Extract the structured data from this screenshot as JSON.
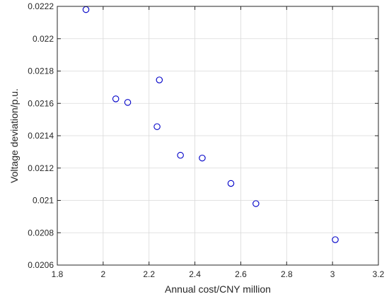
{
  "chart_data": {
    "type": "scatter",
    "title": "",
    "xlabel": "Annual cost/CNY million",
    "ylabel": "Voltage deviation/p.u.",
    "xlim": [
      1.8,
      3.2
    ],
    "ylim": [
      0.0206,
      0.0222
    ],
    "xticks": [
      1.8,
      2,
      2.2,
      2.4,
      2.6,
      2.8,
      3,
      3.2
    ],
    "xtick_labels": [
      "1.8",
      "2",
      "2.2",
      "2.4",
      "2.6",
      "2.8",
      "3",
      "3.2"
    ],
    "yticks": [
      0.0206,
      0.0208,
      0.021,
      0.0212,
      0.0214,
      0.0216,
      0.0218,
      0.022,
      0.0222
    ],
    "ytick_labels": [
      "0.0206",
      "0.0208",
      "0.021",
      "0.0212",
      "0.0214",
      "0.0216",
      "0.0218",
      "0.022",
      "0.0222"
    ],
    "grid": true,
    "marker": "circle",
    "marker_color": "#0000c8",
    "series": [
      {
        "points": [
          {
            "x": 1.925,
            "y": 0.02218
          },
          {
            "x": 2.055,
            "y": 0.021628
          },
          {
            "x": 2.107,
            "y": 0.021606
          },
          {
            "x": 2.245,
            "y": 0.021745
          },
          {
            "x": 2.235,
            "y": 0.021456
          },
          {
            "x": 2.337,
            "y": 0.021279
          },
          {
            "x": 2.432,
            "y": 0.021262
          },
          {
            "x": 2.557,
            "y": 0.021105
          },
          {
            "x": 2.666,
            "y": 0.02098
          },
          {
            "x": 3.012,
            "y": 0.020757
          }
        ]
      }
    ]
  }
}
